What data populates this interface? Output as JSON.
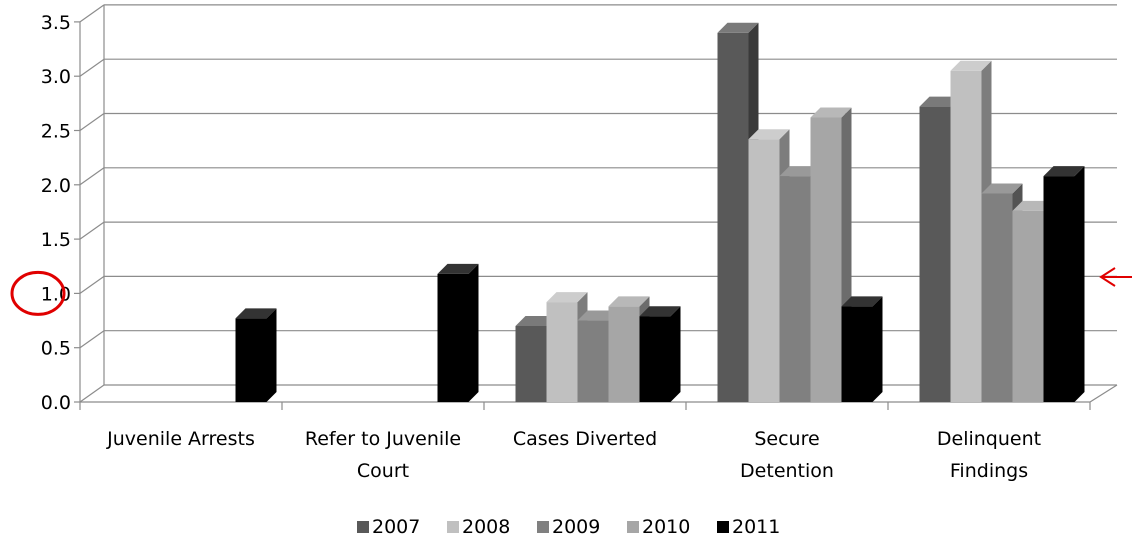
{
  "chart_data": {
    "type": "bar",
    "style": "3d-clustered-column",
    "categories": [
      [
        "Juvenile Arrests"
      ],
      [
        "Refer to Juvenile",
        "Court"
      ],
      [
        "Cases Diverted"
      ],
      [
        "Secure",
        "Detention"
      ],
      [
        "Delinquent",
        "Findings"
      ]
    ],
    "series": [
      {
        "name": "2007",
        "color": "#595959",
        "values": [
          null,
          null,
          0.7,
          3.4,
          2.72
        ]
      },
      {
        "name": "2008",
        "color": "#c0c0c0",
        "values": [
          null,
          null,
          0.92,
          2.42,
          3.05
        ]
      },
      {
        "name": "2009",
        "color": "#808080",
        "values": [
          null,
          null,
          0.75,
          2.08,
          1.92
        ]
      },
      {
        "name": "2010",
        "color": "#a6a6a6",
        "values": [
          null,
          null,
          0.88,
          2.62,
          1.76
        ]
      },
      {
        "name": "2011",
        "color": "#000000",
        "values": [
          0.77,
          1.18,
          0.79,
          0.88,
          2.08
        ]
      }
    ],
    "yticks": [
      "0.0",
      "0.5",
      "1.0",
      "1.5",
      "2.0",
      "2.5",
      "3.0",
      "3.5"
    ],
    "ylim": [
      0,
      3.5
    ],
    "grid": true,
    "legend": "bottom",
    "annotations": [
      {
        "type": "circle",
        "target": "1.0"
      },
      {
        "type": "arrow",
        "color": "#e00000"
      }
    ]
  }
}
